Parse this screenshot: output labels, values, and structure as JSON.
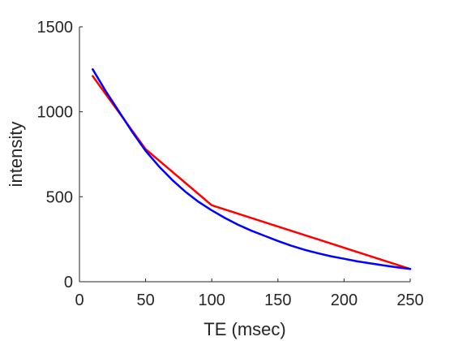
{
  "chart_data": {
    "type": "line",
    "xlabel": "TE (msec)",
    "ylabel": "intensity",
    "xlim": [
      0,
      250
    ],
    "ylim": [
      0,
      1500
    ],
    "xticks": [
      0,
      50,
      100,
      150,
      200,
      250
    ],
    "yticks": [
      0,
      500,
      1000,
      1500
    ],
    "xtick_labels": [
      "0",
      "50",
      "100",
      "150",
      "200",
      "250"
    ],
    "ytick_labels": [
      "0",
      "500",
      "1000",
      "1500"
    ],
    "grid": false,
    "legend": "none",
    "series": [
      {
        "color": "#ff0000",
        "x": [
          10,
          50,
          100,
          250
        ],
        "y": [
          1210,
          780,
          450,
          75
        ]
      },
      {
        "color": "#0000ff",
        "x": [
          10,
          20,
          30,
          40,
          50,
          60,
          70,
          80,
          90,
          100,
          110,
          120,
          130,
          140,
          150,
          160,
          170,
          180,
          190,
          200,
          210,
          220,
          230,
          240,
          250
        ],
        "y": [
          1250,
          1120,
          1000,
          880,
          770,
          680,
          600,
          530,
          470,
          420,
          375,
          335,
          300,
          270,
          240,
          212,
          188,
          168,
          150,
          135,
          120,
          108,
          96,
          85,
          75
        ]
      }
    ]
  }
}
